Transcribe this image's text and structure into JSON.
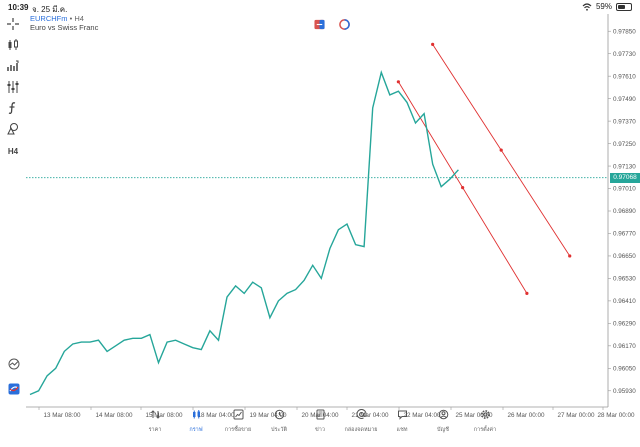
{
  "status_bar": {
    "time": "10:39",
    "date": "จ. 25 มี.ค.",
    "battery": "59%",
    "battery_level": 0.59
  },
  "symbol": {
    "name": "EURCHFm",
    "separator": "•",
    "timeframe": "H4",
    "description": "Euro vs Swiss Franc"
  },
  "toolbar": {
    "icons": [
      "crosshair-icon",
      "candles-icon",
      "indicators-icon",
      "settings-sliders-icon",
      "function-icon",
      "shapes-icon"
    ],
    "timeframe_label": "H4"
  },
  "price_axis": {
    "labels": [
      "0.97850",
      "0.97730",
      "0.97610",
      "0.97490",
      "0.97370",
      "0.97250",
      "0.97130",
      "0.97010",
      "0.96890",
      "0.96770",
      "0.96650",
      "0.96530",
      "0.96410",
      "0.96290",
      "0.96170",
      "0.96050",
      "0.95930"
    ],
    "current_price": "0.97068"
  },
  "time_axis": {
    "labels": [
      "13 Mar 08:00",
      "14 Mar 08:00",
      "15 Mar 08:00",
      "18 Mar 04:00",
      "19 Mar 04:00",
      "20 Mar 04:00",
      "21 Mar 04:00",
      "22 Mar 04:00",
      "25 Mar 00:00",
      "26 Mar 00:00",
      "27 Mar 00:00",
      "28 Mar 00:00"
    ]
  },
  "chart_data": {
    "type": "line",
    "ylim": [
      0.9587,
      0.9791
    ],
    "x": [
      0,
      1,
      2,
      3,
      4,
      5,
      6,
      7,
      8,
      9,
      10,
      11,
      12,
      13,
      14,
      15,
      16,
      17,
      18,
      19,
      20,
      21,
      22,
      23,
      24,
      25,
      26,
      27,
      28,
      29,
      30,
      31,
      32,
      33,
      34,
      35,
      36,
      37,
      38,
      39,
      40,
      41,
      42,
      43,
      44,
      45,
      46,
      47,
      48,
      49,
      50
    ],
    "values": [
      0.9591,
      0.9593,
      0.9601,
      0.9605,
      0.9614,
      0.9618,
      0.9619,
      0.9619,
      0.962,
      0.9614,
      0.9617,
      0.962,
      0.9621,
      0.9621,
      0.9623,
      0.9608,
      0.9619,
      0.962,
      0.9618,
      0.9616,
      0.9615,
      0.9625,
      0.962,
      0.9643,
      0.9649,
      0.9645,
      0.9651,
      0.9648,
      0.9632,
      0.9641,
      0.9645,
      0.9647,
      0.9652,
      0.966,
      0.9653,
      0.9669,
      0.9679,
      0.9682,
      0.9671,
      0.967,
      0.9744,
      0.9763,
      0.9751,
      0.9753,
      0.9747,
      0.9736,
      0.9741,
      0.9714,
      0.9702,
      0.9706,
      0.9711
    ],
    "trendlines": [
      {
        "start": [
          43,
          0.9758
        ],
        "end": [
          58,
          0.9645
        ],
        "color": "#e03030"
      },
      {
        "start": [
          47,
          0.9778
        ],
        "end": [
          63,
          0.9665
        ],
        "color": "#e03030"
      }
    ],
    "current_price": 0.97068,
    "x_max": 67,
    "grid": false
  },
  "side_icons": [
    "activity-icon",
    "mt5-logo-icon"
  ],
  "nav": [
    {
      "label": "ราคา",
      "icon": "quotes-icon",
      "active": false
    },
    {
      "label": "กราฟ",
      "icon": "chart-candles-icon",
      "active": true
    },
    {
      "label": "การซื้อขาย",
      "icon": "trade-icon",
      "active": false
    },
    {
      "label": "ประวัติ",
      "icon": "history-icon",
      "active": false
    },
    {
      "label": "ข่าว",
      "icon": "news-icon",
      "active": false
    },
    {
      "label": "กล่องจดหมาย",
      "icon": "mailbox-icon",
      "active": false
    },
    {
      "label": "แชท",
      "icon": "chat-icon",
      "active": false
    },
    {
      "label": "บัญชี",
      "icon": "account-icon",
      "active": false
    },
    {
      "label": "การตั้งค่า",
      "icon": "settings-icon",
      "active": false
    }
  ],
  "colors": {
    "line": "#26a69a",
    "trend": "#e03030",
    "accent": "#2a6fdb",
    "price_tag": "#26a69a"
  }
}
